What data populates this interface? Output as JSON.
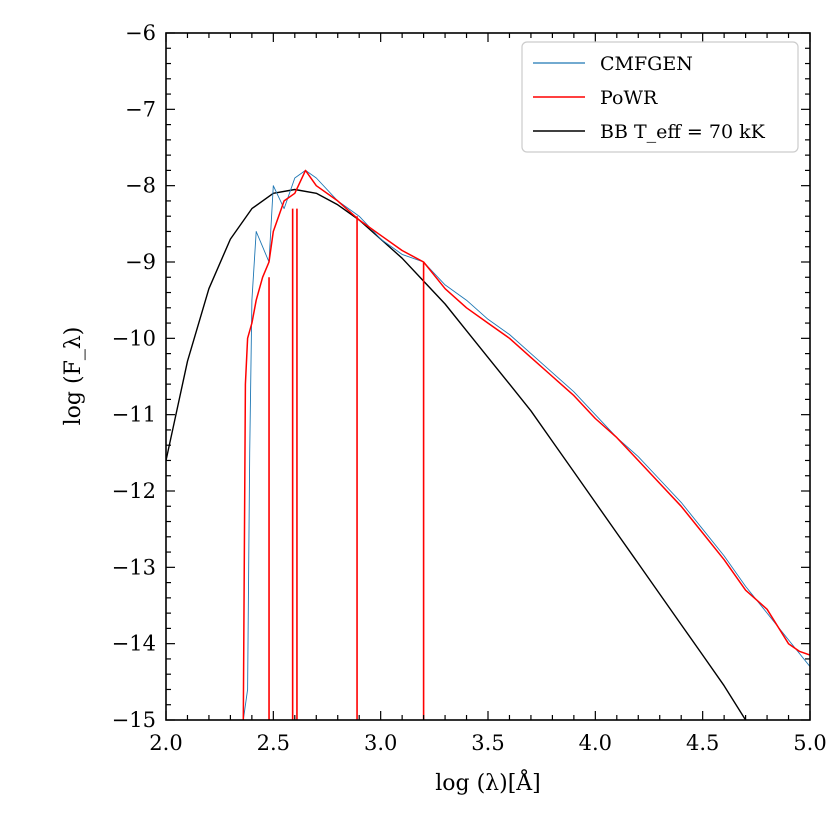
{
  "chart_data": {
    "type": "line",
    "title": "",
    "xlabel": "log (λ)[Å]",
    "ylabel": "log (F_λ)",
    "xlim": [
      2.0,
      5.0
    ],
    "ylim": [
      -15,
      -6
    ],
    "x_ticks": [
      "2.0",
      "2.5",
      "3.0",
      "3.5",
      "4.0",
      "4.5",
      "5.0"
    ],
    "y_ticks": [
      "−6",
      "−7",
      "−8",
      "−9",
      "−10",
      "−11",
      "−12",
      "−13",
      "−14",
      "−15"
    ],
    "x_tick_values": [
      2.0,
      2.5,
      3.0,
      3.5,
      4.0,
      4.5,
      5.0
    ],
    "y_tick_values": [
      -6,
      -7,
      -8,
      -9,
      -10,
      -11,
      -12,
      -13,
      -14,
      -15
    ],
    "legend": {
      "position": "top-right",
      "entries": [
        "CMFGEN",
        "PoWR",
        "BB T_eff = 70 kK"
      ]
    },
    "series": [
      {
        "name": "CMFGEN",
        "color": "#1f77b4",
        "x": [
          2.36,
          2.38,
          2.39,
          2.4,
          2.42,
          2.45,
          2.48,
          2.5,
          2.55,
          2.6,
          2.65,
          2.7,
          2.8,
          2.9,
          3.0,
          3.1,
          3.2,
          3.3,
          3.4,
          3.5,
          3.6,
          3.7,
          3.8,
          3.9,
          4.0,
          4.1,
          4.2,
          4.3,
          4.4,
          4.5,
          4.6,
          4.7,
          4.8,
          4.9,
          5.0
        ],
        "y": [
          -15.0,
          -14.6,
          -11.5,
          -9.5,
          -8.6,
          -8.8,
          -9.0,
          -8.0,
          -8.3,
          -7.9,
          -7.8,
          -7.9,
          -8.2,
          -8.4,
          -8.7,
          -8.9,
          -9.0,
          -9.3,
          -9.5,
          -9.75,
          -9.95,
          -10.2,
          -10.45,
          -10.7,
          -11.0,
          -11.3,
          -11.55,
          -11.85,
          -12.15,
          -12.5,
          -12.85,
          -13.25,
          -13.6,
          -13.95,
          -14.3
        ]
      },
      {
        "name": "PoWR",
        "color": "#ff0000",
        "x": [
          2.36,
          2.37,
          2.38,
          2.4,
          2.42,
          2.45,
          2.48,
          2.5,
          2.55,
          2.6,
          2.65,
          2.7,
          2.8,
          2.9,
          3.0,
          3.1,
          3.2,
          3.3,
          3.4,
          3.5,
          3.6,
          3.7,
          3.8,
          3.9,
          4.0,
          4.1,
          4.2,
          4.3,
          4.4,
          4.5,
          4.6,
          4.7,
          4.8,
          4.9,
          4.95,
          5.0
        ],
        "y": [
          -15.0,
          -10.6,
          -10.0,
          -9.8,
          -9.5,
          -9.2,
          -9.0,
          -8.6,
          -8.2,
          -8.1,
          -7.8,
          -8.0,
          -8.2,
          -8.45,
          -8.65,
          -8.85,
          -9.0,
          -9.35,
          -9.6,
          -9.8,
          -10.0,
          -10.25,
          -10.5,
          -10.75,
          -11.05,
          -11.3,
          -11.6,
          -11.9,
          -12.2,
          -12.55,
          -12.9,
          -13.3,
          -13.55,
          -14.0,
          -14.1,
          -14.15
        ]
      },
      {
        "name": "BB T_eff = 70 kK",
        "color": "#000000",
        "x": [
          2.0,
          2.1,
          2.2,
          2.3,
          2.4,
          2.5,
          2.6,
          2.7,
          2.8,
          2.9,
          3.0,
          3.1,
          3.2,
          3.3,
          3.4,
          3.5,
          3.6,
          3.7,
          3.8,
          3.9,
          4.0,
          4.1,
          4.2,
          4.3,
          4.4,
          4.5,
          4.6,
          4.7
        ],
        "y": [
          -11.6,
          -10.3,
          -9.35,
          -8.7,
          -8.3,
          -8.1,
          -8.05,
          -8.1,
          -8.25,
          -8.45,
          -8.7,
          -8.95,
          -9.25,
          -9.55,
          -9.9,
          -10.25,
          -10.6,
          -10.95,
          -11.35,
          -11.75,
          -12.15,
          -12.55,
          -12.95,
          -13.35,
          -13.75,
          -14.15,
          -14.55,
          -15.0
        ]
      }
    ],
    "absorption_lines": [
      {
        "series": "PoWR",
        "x": 2.48,
        "y_top": -9.2,
        "y_bottom": -15.0
      },
      {
        "series": "PoWR",
        "x": 2.59,
        "y_top": -8.3,
        "y_bottom": -15.0
      },
      {
        "series": "PoWR",
        "x": 2.61,
        "y_top": -8.3,
        "y_bottom": -15.0
      },
      {
        "series": "PoWR",
        "x": 2.89,
        "y_top": -8.4,
        "y_bottom": -15.0
      },
      {
        "series": "PoWR",
        "x": 3.2,
        "y_top": -9.0,
        "y_bottom": -15.0
      }
    ]
  }
}
